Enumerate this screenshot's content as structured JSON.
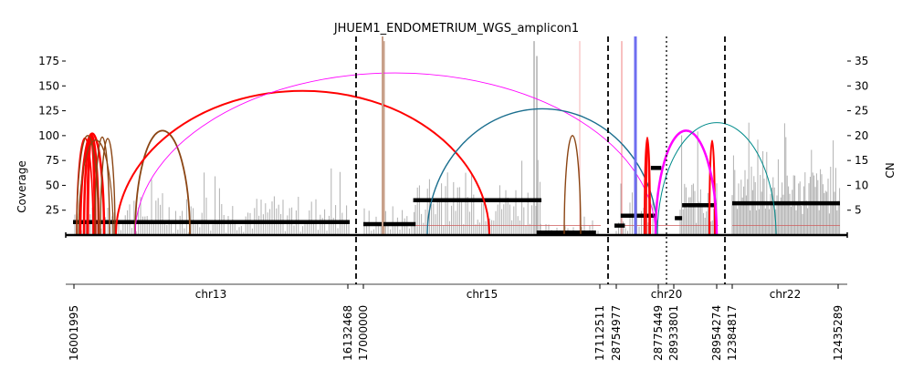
{
  "chart_data": {
    "type": "amplicon-plot",
    "title": "JHUEM1_ENDOMETRIUM_WGS_amplicon1",
    "ylabel": "Coverage",
    "ylabel_right": "CN",
    "ylim_left": [
      0,
      195
    ],
    "ylim_right": [
      0,
      39
    ],
    "yticks_left": [
      25,
      50,
      75,
      100,
      125,
      150,
      175
    ],
    "yticks_right": [
      5,
      10,
      15,
      20,
      25,
      30,
      35
    ],
    "segments": [
      {
        "chrom": "chr13",
        "start": "16001995",
        "end": "16132468"
      },
      {
        "chrom": "chr15",
        "start": "17000000",
        "end": "17112511"
      },
      {
        "chrom": "chr20",
        "start": "28754977",
        "end": "28954274",
        "mid": "28775449",
        "mid2": "28933801"
      },
      {
        "chrom": "chr22",
        "start": "12384817",
        "end": "12435289"
      }
    ],
    "xtick_labels": [
      "16001995",
      "16132468",
      "17000000",
      "17112511",
      "28754977",
      "28775449",
      "28933801",
      "28954274",
      "12384817",
      "12435289"
    ],
    "copy_number_segments": [
      {
        "chrom": "chr13",
        "cn": 2.6,
        "from": 0.0,
        "to": 1.0
      },
      {
        "chrom": "chr15",
        "cn": 2.2,
        "from": 0.0,
        "to": 0.22
      },
      {
        "chrom": "chr15",
        "cn": 7.0,
        "from": 0.21,
        "to": 0.75
      },
      {
        "chrom": "chr15",
        "cn": 0.5,
        "from": 0.73,
        "to": 0.98
      },
      {
        "chrom": "chr20",
        "cn": 1.9,
        "from": 0.0,
        "to": 0.1
      },
      {
        "chrom": "chr20",
        "cn": 3.9,
        "from": 0.06,
        "to": 0.4
      },
      {
        "chrom": "chr20",
        "cn": 13.5,
        "from": 0.35,
        "to": 0.45
      },
      {
        "chrom": "chr20",
        "cn": 3.4,
        "from": 0.58,
        "to": 0.65
      },
      {
        "chrom": "chr20",
        "cn": 6.0,
        "from": 0.65,
        "to": 0.98
      },
      {
        "chrom": "chr22",
        "cn": 6.4,
        "from": 0.0,
        "to": 1.0
      }
    ],
    "breakpoint_arcs": [
      {
        "color": "#ff0000",
        "peak": 102,
        "from": "chr13",
        "to": "chr13"
      },
      {
        "color": "#8b4513",
        "peak": 100,
        "from": "chr13",
        "to": "chr13"
      },
      {
        "color": "#8b4513",
        "peak": 105,
        "from": "chr13",
        "to": "chr13"
      },
      {
        "color": "#ff0000",
        "peak": 145,
        "from": "chr13",
        "to": "chr15"
      },
      {
        "color": "#ff00ff",
        "peak": 163,
        "from": "chr13",
        "to": "chr20"
      },
      {
        "color": "#1a6e8e",
        "peak": 127,
        "from": "chr15",
        "to": "chr20"
      },
      {
        "color": "#8b4513",
        "peak": 100,
        "from": "chr15",
        "to": "chr15"
      },
      {
        "color": "#ff0000",
        "peak": 98,
        "from": "chr20",
        "to": "chr20"
      },
      {
        "color": "#ff00ff",
        "peak": 105,
        "from": "chr20",
        "to": "chr20"
      },
      {
        "color": "#008b8b",
        "peak": 113,
        "from": "chr20",
        "to": "chr22"
      }
    ],
    "colors": {
      "coverage": "#b0b0b0",
      "cn_segment": "#000000",
      "baseline_cn": "#cd5c5c",
      "interchrom_separator": "#000000"
    },
    "grid": false,
    "legend": "none"
  }
}
